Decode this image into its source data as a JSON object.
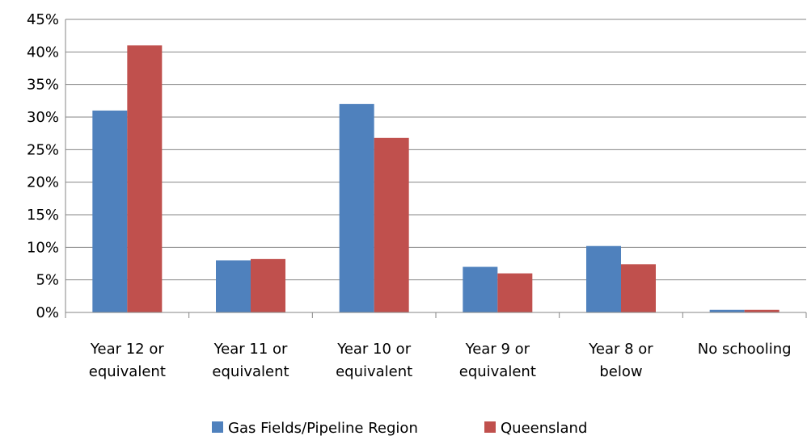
{
  "chart_data": {
    "type": "bar",
    "categories": [
      [
        "Year 12 or",
        "equivalent"
      ],
      [
        "Year 11 or",
        "equivalent"
      ],
      [
        "Year 10 or",
        "equivalent"
      ],
      [
        "Year 9 or",
        "equivalent"
      ],
      [
        "Year 8 or",
        "below"
      ],
      [
        "No schooling"
      ]
    ],
    "series": [
      {
        "name": "Gas Fields/Pipeline Region",
        "color": "#4F81BD",
        "values": [
          31,
          8,
          32,
          7,
          10.2,
          0.4
        ]
      },
      {
        "name": "Queensland",
        "color": "#C0504D",
        "values": [
          41,
          8.2,
          26.8,
          6,
          7.4,
          0.4
        ]
      }
    ],
    "ylim": [
      0,
      45
    ],
    "yticks": [
      "0%",
      "5%",
      "10%",
      "15%",
      "20%",
      "25%",
      "30%",
      "35%",
      "40%",
      "45%"
    ],
    "ytick_values": [
      0,
      5,
      10,
      15,
      20,
      25,
      30,
      35,
      40,
      45
    ],
    "grid": true,
    "legend_position": "bottom"
  }
}
